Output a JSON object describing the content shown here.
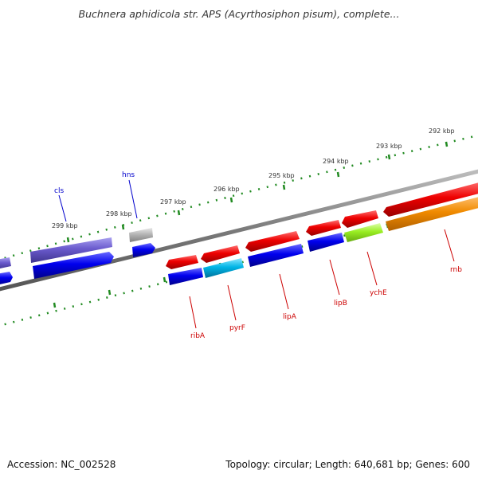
{
  "title": "Buchnera aphidicola str. APS (Acyrthosiphon pisum), complete...",
  "accession_text": "Accession: NC_002528",
  "summary_text": "Topology: circular; Length: 640,681 bp; Genes: 600",
  "colors": {
    "backbone": "#7a7a7a",
    "ticks": "#228b22",
    "label_plus": "#0000cc",
    "label_minus": "#cc0000",
    "red": "#e00000",
    "blue": "#0000e0",
    "purple": "#6a5acd",
    "gray": "#a9a9a9",
    "cyan": "#00aadd",
    "lime": "#99ee22",
    "orange": "#f08a00"
  },
  "kbp_labels": [
    "292 kbp",
    "293 kbp",
    "294 kbp",
    "295 kbp",
    "296 kbp",
    "297 kbp",
    "298 kbp",
    "299 kbp"
  ],
  "gene_labels": {
    "top": [
      "cls",
      "hns"
    ],
    "bottom": [
      "ribA",
      "pyrF",
      "lipA",
      "lipB",
      "ychE",
      "rnb"
    ]
  }
}
